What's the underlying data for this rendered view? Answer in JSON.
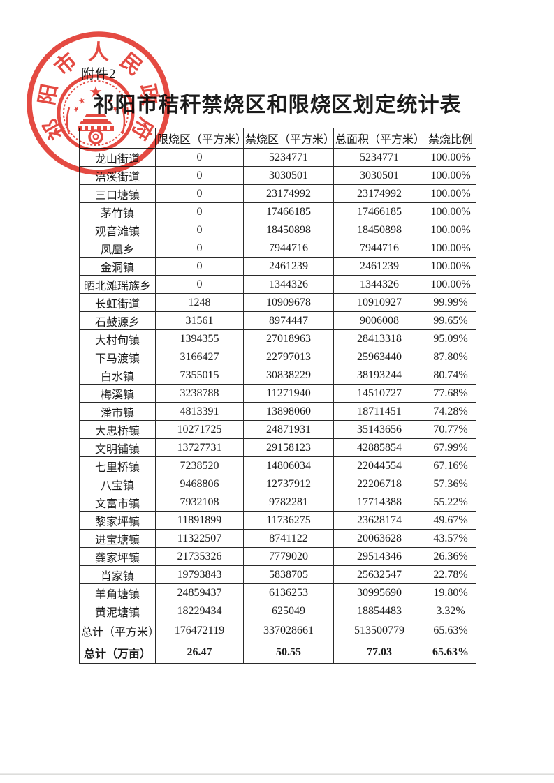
{
  "page": {
    "attachment_label": "附件2",
    "title": "祁阳市秸秆禁烧区和限烧区划定统计表"
  },
  "seal": {
    "text": "祁阳市人民政府",
    "color": "#e23c33"
  },
  "chart_data": {
    "type": "table",
    "title": "祁阳市秸秆禁烧区和限烧区划定统计表",
    "headers": [
      "",
      "限烧区（平方米）",
      "禁烧区（平方米）",
      "总面积（平方米）",
      "禁烧比例"
    ],
    "rows": [
      [
        "龙山街道",
        "0",
        "5234771",
        "5234771",
        "100.00%"
      ],
      [
        "浯溪街道",
        "0",
        "3030501",
        "3030501",
        "100.00%"
      ],
      [
        "三口塘镇",
        "0",
        "23174992",
        "23174992",
        "100.00%"
      ],
      [
        "茅竹镇",
        "0",
        "17466185",
        "17466185",
        "100.00%"
      ],
      [
        "观音滩镇",
        "0",
        "18450898",
        "18450898",
        "100.00%"
      ],
      [
        "凤凰乡",
        "0",
        "7944716",
        "7944716",
        "100.00%"
      ],
      [
        "金洞镇",
        "0",
        "2461239",
        "2461239",
        "100.00%"
      ],
      [
        "晒北滩瑶族乡",
        "0",
        "1344326",
        "1344326",
        "100.00%"
      ],
      [
        "长虹街道",
        "1248",
        "10909678",
        "10910927",
        "99.99%"
      ],
      [
        "石鼓源乡",
        "31561",
        "8974447",
        "9006008",
        "99.65%"
      ],
      [
        "大村甸镇",
        "1394355",
        "27018963",
        "28413318",
        "95.09%"
      ],
      [
        "下马渡镇",
        "3166427",
        "22797013",
        "25963440",
        "87.80%"
      ],
      [
        "白水镇",
        "7355015",
        "30838229",
        "38193244",
        "80.74%"
      ],
      [
        "梅溪镇",
        "3238788",
        "11271940",
        "14510727",
        "77.68%"
      ],
      [
        "潘市镇",
        "4813391",
        "13898060",
        "18711451",
        "74.28%"
      ],
      [
        "大忠桥镇",
        "10271725",
        "24871931",
        "35143656",
        "70.77%"
      ],
      [
        "文明铺镇",
        "13727731",
        "29158123",
        "42885854",
        "67.99%"
      ],
      [
        "七里桥镇",
        "7238520",
        "14806034",
        "22044554",
        "67.16%"
      ],
      [
        "八宝镇",
        "9468806",
        "12737912",
        "22206718",
        "57.36%"
      ],
      [
        "文富市镇",
        "7932108",
        "9782281",
        "17714388",
        "55.22%"
      ],
      [
        "黎家坪镇",
        "11891899",
        "11736275",
        "23628174",
        "49.67%"
      ],
      [
        "进宝塘镇",
        "11322507",
        "8741122",
        "20063628",
        "43.57%"
      ],
      [
        "龚家坪镇",
        "21735326",
        "7779020",
        "29514346",
        "26.36%"
      ],
      [
        "肖家镇",
        "19793843",
        "5838705",
        "25632547",
        "22.78%"
      ],
      [
        "羊角塘镇",
        "24859437",
        "6136253",
        "30995690",
        "19.80%"
      ],
      [
        "黄泥塘镇",
        "18229434",
        "625049",
        "18854483",
        "3.32%"
      ]
    ],
    "total_sqm_row": [
      "总计（平方米）",
      "176472119",
      "337028661",
      "513500779",
      "65.63%"
    ],
    "total_mu_row": [
      "总计（万亩）",
      "26.47",
      "50.55",
      "77.03",
      "65.63%"
    ]
  }
}
